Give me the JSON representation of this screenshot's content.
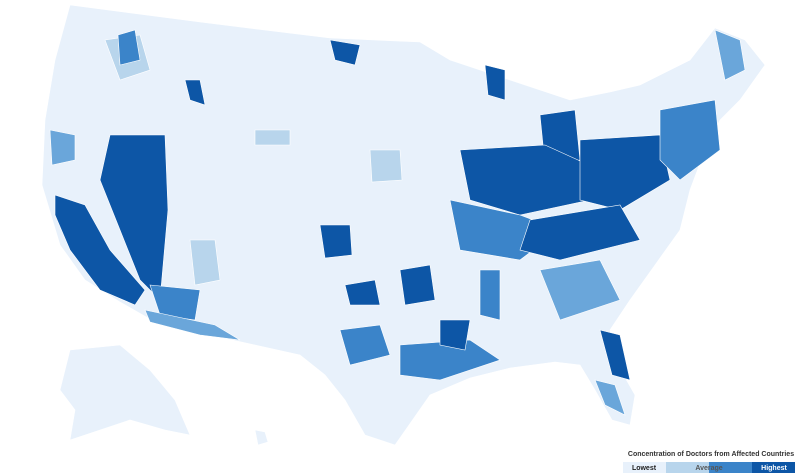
{
  "legend": {
    "title": "Concentration of Doctors from Affected Countries",
    "labels": [
      "Lowest",
      "Average",
      "Highest"
    ]
  }
}
